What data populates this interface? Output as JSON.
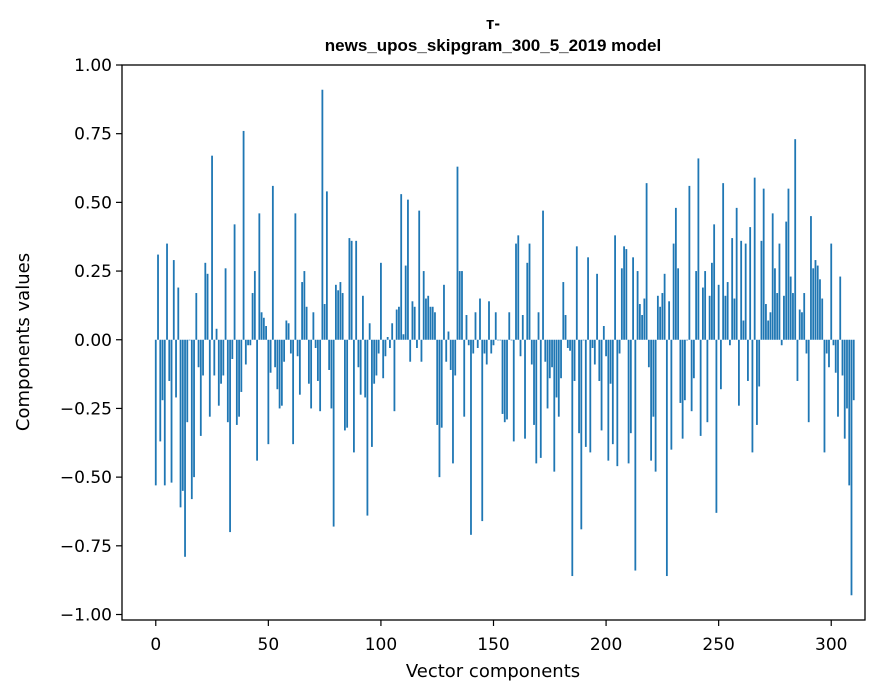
{
  "chart_data": {
    "type": "bar",
    "title_line1": "т-",
    "title_line2": "news_upos_skipgram_300_5_2019 model",
    "xlabel": "Vector components",
    "ylabel": "Components values",
    "xlim": [
      -15,
      315
    ],
    "ylim": [
      -1.02,
      1.0
    ],
    "xticks": [
      0,
      50,
      100,
      150,
      200,
      250,
      300
    ],
    "xtick_labels": [
      "0",
      "50",
      "100",
      "150",
      "200",
      "250",
      "300"
    ],
    "yticks": [
      1.0,
      0.75,
      0.5,
      0.25,
      0.0,
      -0.25,
      -0.5,
      -0.75,
      -1.0
    ],
    "ytick_labels": [
      "1.00",
      "0.75",
      "0.50",
      "0.25",
      "0.00",
      "−0.25",
      "−0.50",
      "−0.75",
      "−1.00"
    ],
    "grid": false,
    "bar_color": "#1f77b4",
    "values": [
      -0.53,
      0.31,
      -0.37,
      -0.22,
      -0.53,
      0.35,
      -0.15,
      -0.52,
      0.29,
      -0.21,
      0.19,
      -0.61,
      -0.55,
      -0.79,
      -0.3,
      0.0,
      -0.58,
      -0.5,
      0.17,
      -0.1,
      -0.35,
      -0.13,
      0.28,
      0.24,
      -0.28,
      0.67,
      -0.13,
      0.04,
      -0.24,
      -0.16,
      -0.13,
      0.26,
      -0.3,
      -0.7,
      -0.07,
      0.42,
      -0.31,
      -0.28,
      -0.19,
      0.76,
      -0.09,
      -0.02,
      -0.02,
      0.17,
      0.25,
      -0.44,
      0.46,
      0.1,
      0.08,
      0.05,
      -0.38,
      -0.12,
      0.56,
      -0.1,
      -0.18,
      -0.25,
      -0.24,
      -0.08,
      0.07,
      0.06,
      -0.05,
      -0.38,
      0.46,
      -0.06,
      -0.2,
      0.21,
      0.25,
      0.12,
      -0.16,
      -0.25,
      0.1,
      -0.03,
      -0.15,
      -0.26,
      0.91,
      0.13,
      0.54,
      -0.11,
      -0.25,
      -0.68,
      0.2,
      0.18,
      0.21,
      0.17,
      -0.33,
      -0.32,
      0.37,
      0.36,
      -0.41,
      0.36,
      -0.1,
      -0.2,
      0.16,
      -0.21,
      -0.64,
      0.06,
      -0.39,
      -0.16,
      -0.13,
      -0.05,
      0.28,
      -0.14,
      -0.06,
      0.01,
      -0.03,
      0.06,
      -0.26,
      0.11,
      0.12,
      0.53,
      0.02,
      0.27,
      0.51,
      -0.08,
      0.14,
      0.12,
      -0.03,
      0.47,
      -0.08,
      0.25,
      0.15,
      0.16,
      0.12,
      0.12,
      0.1,
      -0.31,
      -0.5,
      -0.32,
      0.2,
      -0.08,
      0.03,
      -0.11,
      -0.45,
      -0.13,
      0.63,
      0.25,
      0.25,
      -0.28,
      0.09,
      -0.02,
      -0.71,
      -0.05,
      0.1,
      -0.03,
      0.15,
      -0.66,
      -0.05,
      -0.09,
      0.14,
      -0.05,
      -0.02,
      0.1,
      0.0,
      0.0,
      -0.27,
      -0.3,
      -0.29,
      0.1,
      0.0,
      -0.37,
      0.35,
      0.38,
      -0.06,
      0.09,
      -0.36,
      0.28,
      0.35,
      -0.09,
      -0.31,
      -0.45,
      0.1,
      -0.43,
      0.47,
      -0.08,
      -0.25,
      -0.14,
      -0.1,
      -0.48,
      -0.21,
      -0.28,
      -0.14,
      0.21,
      0.09,
      -0.03,
      -0.04,
      -0.86,
      -0.15,
      0.34,
      -0.34,
      -0.69,
      0.0,
      -0.39,
      0.3,
      -0.41,
      -0.03,
      -0.09,
      0.24,
      -0.15,
      -0.33,
      0.05,
      -0.06,
      -0.44,
      -0.16,
      -0.38,
      0.38,
      -0.46,
      -0.05,
      0.26,
      0.34,
      0.33,
      -0.45,
      -0.34,
      0.3,
      -0.84,
      0.25,
      0.13,
      0.09,
      0.15,
      0.57,
      -0.1,
      -0.44,
      -0.28,
      -0.48,
      0.16,
      0.12,
      0.17,
      0.24,
      -0.86,
      0.14,
      -0.4,
      0.35,
      0.48,
      0.26,
      -0.23,
      -0.36,
      -0.22,
      0.0,
      0.56,
      -0.26,
      -0.14,
      0.25,
      0.66,
      -0.35,
      0.19,
      0.25,
      -0.3,
      0.16,
      0.28,
      0.42,
      -0.63,
      0.2,
      -0.18,
      0.57,
      0.16,
      0.21,
      -0.02,
      0.37,
      0.15,
      0.48,
      -0.24,
      0.36,
      0.07,
      0.35,
      -0.15,
      0.41,
      -0.41,
      0.59,
      -0.31,
      -0.17,
      0.36,
      0.55,
      0.13,
      0.07,
      0.1,
      0.46,
      0.26,
      0.17,
      0.35,
      -0.02,
      0.16,
      0.43,
      0.55,
      0.23,
      0.17,
      0.73,
      -0.15,
      0.11,
      0.1,
      0.17,
      -0.05,
      -0.3,
      0.45,
      0.26,
      0.29,
      0.27,
      0.22,
      0.15,
      -0.41,
      -0.05,
      -0.1,
      0.35,
      -0.02,
      -0.12,
      -0.28,
      0.23,
      -0.13,
      -0.36,
      -0.25,
      -0.53,
      -0.93,
      -0.22
    ]
  }
}
